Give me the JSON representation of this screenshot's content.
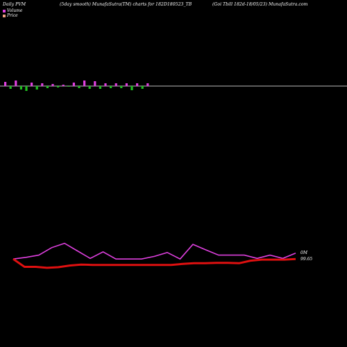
{
  "header": {
    "left": "Daily PVM",
    "middle": "(5day smooth) MunafaSutra(TM) charts for 182D180523_TB",
    "right": "(Goi  Tbill 182d-18/05/23) MunafaSutra.com"
  },
  "legend": {
    "volume_label": "Volume",
    "price_label": "Price",
    "volume_color": "#e040e0",
    "price_color": "#f0a080"
  },
  "end_labels": {
    "volume": "0M",
    "price": "99.65"
  },
  "colors": {
    "up_volume": "#e040e0",
    "down_volume": "#20c020",
    "baseline": "#bbbbbb",
    "pvm_line": "#e040e0",
    "price_line": "#e01010"
  },
  "chart_data": {
    "type": "line",
    "title": "",
    "xlabel": "",
    "ylabel": "",
    "grid": false,
    "legend_position": "top-left",
    "volume_bars": {
      "values": [
        6,
        -4,
        8,
        -5,
        -7,
        5,
        -5,
        4,
        -3,
        3,
        -2,
        2,
        -1,
        5,
        -3,
        8,
        -4,
        7,
        -4,
        4,
        -3,
        4,
        -3,
        4,
        -6,
        4,
        -4,
        4
      ],
      "unit": "relative"
    },
    "series": [
      {
        "values": [
          99.6,
          99.65,
          99.72,
          99.95,
          100.08,
          99.85,
          99.62,
          99.82,
          99.6,
          99.6,
          99.6,
          99.68,
          99.8,
          99.6,
          100.05,
          99.88,
          99.72,
          99.72,
          99.72,
          99.62,
          99.72,
          99.62,
          99.78
        ]
      },
      {
        "values": [
          99.6,
          99.36,
          99.36,
          99.33,
          99.35,
          99.4,
          99.43,
          99.42,
          99.42,
          99.42,
          99.42,
          99.42,
          99.42,
          99.42,
          99.42,
          99.45,
          99.47,
          99.47,
          99.48,
          99.48,
          99.47,
          99.55,
          99.58,
          99.58,
          99.58,
          99.6
        ]
      }
    ]
  }
}
